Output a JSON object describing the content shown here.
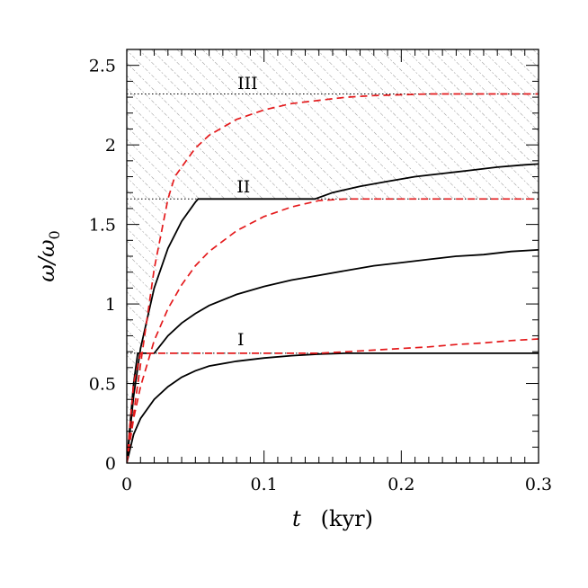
{
  "chart_data": {
    "type": "line",
    "xlabel": {
      "symbol": "t",
      "unit": "(kyr)"
    },
    "ylabel": {
      "base": "ω/ω",
      "sub": "0"
    },
    "xlim": [
      0,
      0.3
    ],
    "ylim": [
      0,
      2.6
    ],
    "x_ticks": [
      0,
      0.1,
      0.2,
      0.3
    ],
    "x_tick_labels": [
      "0",
      "0.1",
      "0.2",
      "0.3"
    ],
    "y_ticks": [
      0,
      0.5,
      1,
      1.5,
      2,
      2.5
    ],
    "y_tick_labels": [
      "0",
      "0.5",
      "1",
      "1.5",
      "2",
      "2.5"
    ],
    "hatched_region": {
      "description": "forbidden region above ω/ω0 = 1.66 (hatched) with diagonal boundary from origin"
    },
    "reference_lines": [
      {
        "label": "III",
        "y": 2.32,
        "style": "dotted"
      },
      {
        "label": "II",
        "y": 1.66,
        "style": "dotted"
      },
      {
        "label": "I",
        "y": 0.69,
        "style": "dotted"
      }
    ],
    "region_labels": [
      {
        "text": "III",
        "x": 0.088,
        "y": 2.35
      },
      {
        "text": "II",
        "x": 0.085,
        "y": 1.7
      },
      {
        "text": "I",
        "x": 0.083,
        "y": 0.74
      }
    ],
    "series": [
      {
        "style": "solid",
        "color": "#000000",
        "x": [
          0,
          0.005,
          0.01,
          0.02,
          0.03,
          0.04,
          0.05,
          0.06,
          0.08,
          0.1,
          0.12,
          0.14,
          0.16,
          0.18,
          0.2,
          0.22,
          0.24,
          0.26,
          0.28,
          0.3
        ],
        "y": [
          0,
          0.18,
          0.28,
          0.4,
          0.48,
          0.54,
          0.58,
          0.61,
          0.64,
          0.66,
          0.675,
          0.685,
          0.69,
          0.69,
          0.69,
          0.69,
          0.69,
          0.69,
          0.69,
          0.69
        ]
      },
      {
        "style": "solid",
        "color": "#000000",
        "x": [
          0,
          0.005,
          0.008,
          0.02,
          0.03,
          0.04,
          0.05,
          0.06,
          0.08,
          0.1,
          0.12,
          0.14,
          0.16,
          0.18,
          0.2,
          0.22,
          0.24,
          0.26,
          0.28,
          0.3
        ],
        "y": [
          0,
          0.5,
          0.69,
          0.69,
          0.8,
          0.88,
          0.94,
          0.99,
          1.06,
          1.11,
          1.15,
          1.18,
          1.21,
          1.24,
          1.26,
          1.28,
          1.3,
          1.31,
          1.33,
          1.34
        ]
      },
      {
        "style": "solid",
        "color": "#000000",
        "x": [
          0,
          0.005,
          0.01,
          0.02,
          0.03,
          0.04,
          0.05,
          0.052,
          0.07,
          0.1,
          0.12,
          0.137,
          0.15,
          0.17,
          0.19,
          0.21,
          0.23,
          0.25,
          0.27,
          0.29,
          0.3
        ],
        "y": [
          0,
          0.42,
          0.72,
          1.1,
          1.35,
          1.52,
          1.64,
          1.66,
          1.66,
          1.66,
          1.66,
          1.66,
          1.7,
          1.74,
          1.77,
          1.8,
          1.82,
          1.84,
          1.86,
          1.875,
          1.88
        ]
      },
      {
        "style": "dashed",
        "color": "#e41a1c",
        "x": [
          0,
          0.005,
          0.01,
          0.02,
          0.03,
          0.04,
          0.05,
          0.06,
          0.08,
          0.1,
          0.12,
          0.14,
          0.16,
          0.18,
          0.2,
          0.22,
          0.24,
          0.26,
          0.28,
          0.3
        ],
        "y": [
          0,
          0.5,
          0.69,
          0.69,
          0.69,
          0.69,
          0.69,
          0.69,
          0.69,
          0.69,
          0.69,
          0.69,
          0.7,
          0.71,
          0.72,
          0.73,
          0.745,
          0.755,
          0.77,
          0.78
        ]
      },
      {
        "style": "dashed",
        "color": "#e41a1c",
        "x": [
          0,
          0.005,
          0.01,
          0.02,
          0.03,
          0.04,
          0.05,
          0.06,
          0.08,
          0.1,
          0.12,
          0.14,
          0.16,
          0.18,
          0.2,
          0.22,
          0.24,
          0.26,
          0.28,
          0.3
        ],
        "y": [
          0,
          0.28,
          0.48,
          0.77,
          0.97,
          1.12,
          1.24,
          1.33,
          1.46,
          1.55,
          1.61,
          1.65,
          1.66,
          1.66,
          1.66,
          1.66,
          1.66,
          1.66,
          1.66,
          1.66
        ]
      },
      {
        "style": "dashed",
        "color": "#e41a1c",
        "x": [
          0,
          0.01,
          0.02,
          0.03,
          0.035,
          0.05,
          0.06,
          0.08,
          0.1,
          0.12,
          0.14,
          0.16,
          0.18,
          0.2,
          0.22,
          0.23,
          0.24,
          0.26,
          0.28,
          0.3
        ],
        "y": [
          0,
          0.62,
          1.22,
          1.66,
          1.8,
          1.98,
          2.06,
          2.16,
          2.22,
          2.26,
          2.28,
          2.3,
          2.31,
          2.315,
          2.32,
          2.32,
          2.32,
          2.32,
          2.32,
          2.32
        ]
      }
    ]
  }
}
